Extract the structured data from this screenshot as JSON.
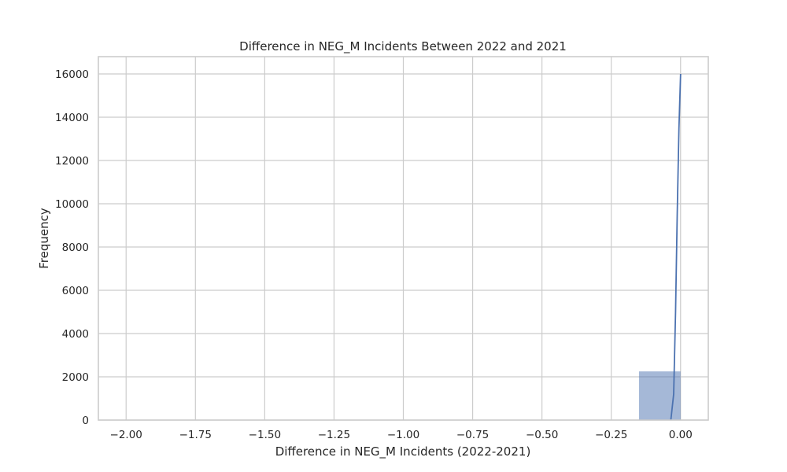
{
  "chart_data": {
    "type": "bar",
    "title": "Difference in NEG_M Incidents Between 2022 and 2021",
    "xlabel": "Difference in NEG_M Incidents (2022-2021)",
    "ylabel": "Frequency",
    "xlim": [
      -2.1,
      0.1
    ],
    "ylim": [
      0,
      16800
    ],
    "grid": true,
    "x_ticks": [
      -2.0,
      -1.75,
      -1.5,
      -1.25,
      -1.0,
      -0.75,
      -0.5,
      -0.25,
      0.0
    ],
    "x_tick_labels": [
      "−2.00",
      "−1.75",
      "−1.50",
      "−1.25",
      "−1.00",
      "−0.75",
      "−0.50",
      "−0.25",
      "0.00"
    ],
    "y_ticks": [
      0,
      2000,
      4000,
      6000,
      8000,
      10000,
      12000,
      14000,
      16000
    ],
    "y_tick_labels": [
      "0",
      "2000",
      "4000",
      "6000",
      "8000",
      "10000",
      "12000",
      "14000",
      "16000"
    ],
    "bars": [
      {
        "x0": -0.15,
        "x1": 0.0,
        "value": 2250
      }
    ],
    "kde_curve": {
      "x": [
        -0.035,
        -0.025,
        -0.018,
        -0.012,
        -0.006,
        0.0
      ],
      "y": [
        0,
        1200,
        5000,
        9500,
        13500,
        16000
      ]
    },
    "colors": {
      "bar_fill": "#4c72b0",
      "bar_fill_opacity": 0.5,
      "line": "#4c72b0",
      "grid": "#cccccc",
      "text": "#262626"
    }
  }
}
